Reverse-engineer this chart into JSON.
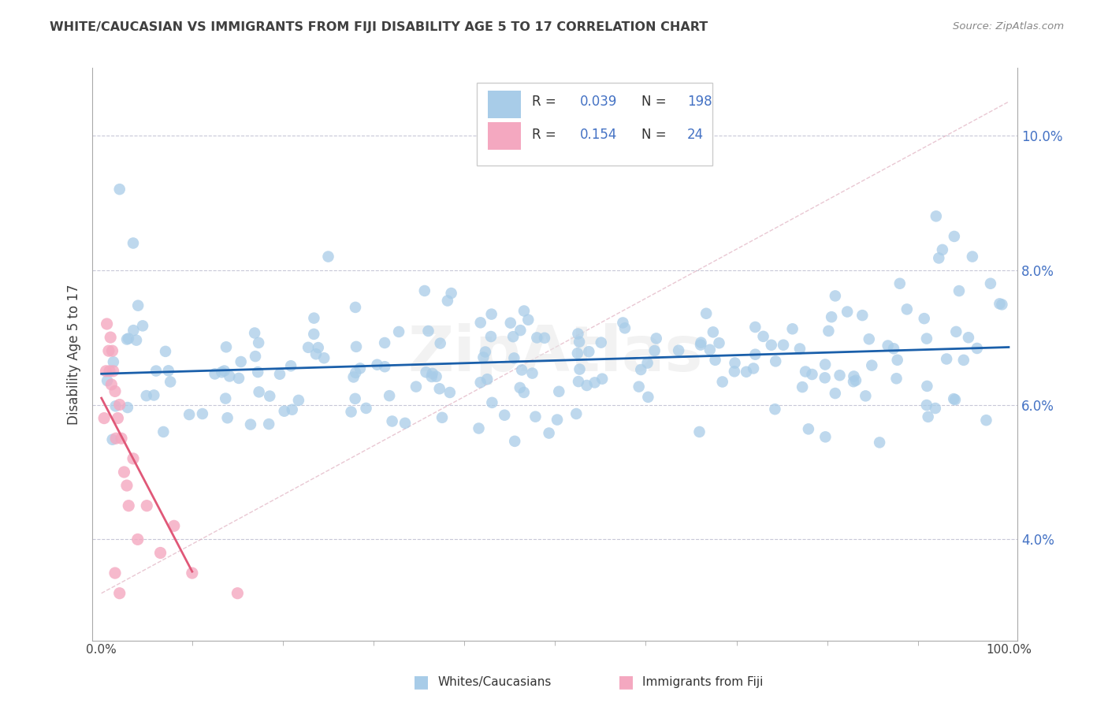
{
  "title": "WHITE/CAUCASIAN VS IMMIGRANTS FROM FIJI DISABILITY AGE 5 TO 17 CORRELATION CHART",
  "source_text": "Source: ZipAtlas.com",
  "ylabel": "Disability Age 5 to 17",
  "xlim": [
    -1,
    101
  ],
  "ylim": [
    2.5,
    11.0
  ],
  "yticks": [
    4.0,
    6.0,
    8.0,
    10.0
  ],
  "xticks": [
    0,
    100
  ],
  "xtick_labels": [
    "0.0%",
    "100.0%"
  ],
  "legend_R1": "0.039",
  "legend_N1": "198",
  "legend_R2": "0.154",
  "legend_N2": "24",
  "color_blue": "#a8cce8",
  "color_pink": "#f4a8c0",
  "line_blue": "#1a5faa",
  "line_pink_diag": "#e8b0c0",
  "line_pink_reg": "#e05878",
  "grid_color": "#c8c8d8",
  "label1": "Whites/Caucasians",
  "label2": "Immigrants from Fiji",
  "watermark": "ZipAtlas",
  "tick_color": "#4472c4",
  "title_color": "#404040",
  "source_color": "#888888"
}
